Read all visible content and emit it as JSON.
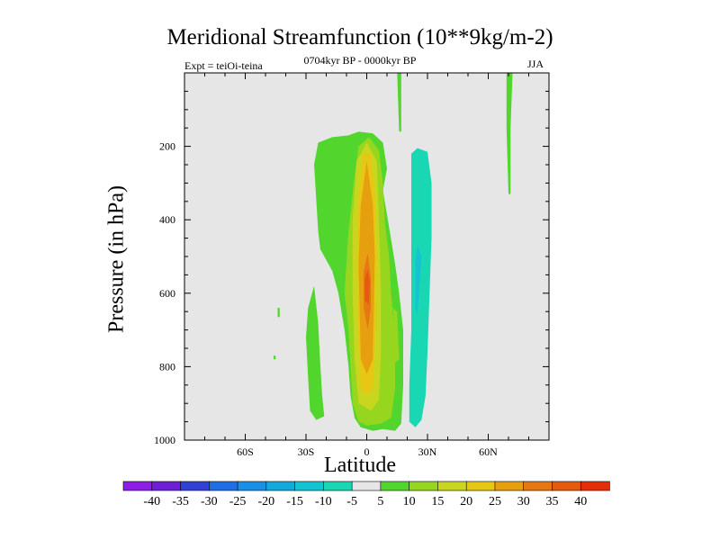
{
  "figure": {
    "title": "Meridional Streamfunction (10**9kg/m-2)",
    "left_label": "Expt = teiOi-teina",
    "center_label": "0704kyr BP - 0000kyr BP",
    "right_label": "JJA",
    "background_color": "#e6e6e6"
  },
  "chart_data": {
    "type": "heatmap",
    "title": "Meridional Streamfunction (10**9kg/m-2)",
    "xlabel": "Latitude",
    "ylabel": "Pressure (in hPa)",
    "xlim": [
      -90,
      90
    ],
    "ylim": [
      1000,
      0
    ],
    "x_ticks": [
      {
        "value": -60,
        "label": "60S"
      },
      {
        "value": -30,
        "label": "30S"
      },
      {
        "value": 0,
        "label": "0"
      },
      {
        "value": 30,
        "label": "30N"
      },
      {
        "value": 60,
        "label": "60N"
      }
    ],
    "y_ticks": [
      {
        "value": 200,
        "label": "200"
      },
      {
        "value": 400,
        "label": "400"
      },
      {
        "value": 600,
        "label": "600"
      },
      {
        "value": 800,
        "label": "800"
      },
      {
        "value": 1000,
        "label": "1000"
      }
    ],
    "colorbar": {
      "labels": [
        "-40",
        "-35",
        "-30",
        "-25",
        "-20",
        "-15",
        "-10",
        "-5",
        "5",
        "10",
        "15",
        "20",
        "25",
        "30",
        "35",
        "40"
      ],
      "colors": [
        "#8c1ee6",
        "#6e1fd6",
        "#3340d6",
        "#1f6ee6",
        "#1a8fe6",
        "#12aadd",
        "#14c3d2",
        "#19d7b3",
        "#e6e6e6",
        "#52d62e",
        "#96d61f",
        "#c8d61f",
        "#e6c814",
        "#e6a00f",
        "#e67814",
        "#e65a0f",
        "#e62d0a"
      ]
    },
    "fields": [
      {
        "name": "southern subtropical cell positive",
        "level": 5,
        "color": "#52d62e",
        "points": [
          [
            -24,
            430
          ],
          [
            -26,
            250
          ],
          [
            -24,
            190
          ],
          [
            -17,
            175
          ],
          [
            -9,
            170
          ],
          [
            -4,
            160
          ],
          [
            3,
            165
          ],
          [
            8,
            190
          ],
          [
            10,
            260
          ],
          [
            8,
            320
          ],
          [
            11,
            420
          ],
          [
            14,
            520
          ],
          [
            16,
            600
          ],
          [
            18,
            700
          ],
          [
            18,
            850
          ],
          [
            17,
            955
          ],
          [
            14,
            975
          ],
          [
            8,
            970
          ],
          [
            3,
            975
          ],
          [
            -3,
            965
          ],
          [
            -6,
            940
          ],
          [
            -8,
            880
          ],
          [
            -9,
            800
          ],
          [
            -11,
            700
          ],
          [
            -14,
            600
          ],
          [
            -17,
            540
          ],
          [
            -23,
            480
          ]
        ]
      },
      {
        "name": "southern lobe",
        "level": 5,
        "color": "#52d62e",
        "points": [
          [
            -26,
            580
          ],
          [
            -24,
            680
          ],
          [
            -23,
            790
          ],
          [
            -22,
            880
          ],
          [
            -21,
            935
          ],
          [
            -25,
            945
          ],
          [
            -28,
            920
          ],
          [
            -29,
            830
          ],
          [
            -30,
            720
          ],
          [
            -29,
            640
          ]
        ]
      },
      {
        "name": "upper extension near equator",
        "level": 5,
        "color": "#52d62e",
        "points": [
          [
            15,
            0
          ],
          [
            17,
            0
          ],
          [
            17,
            160
          ],
          [
            16,
            160
          ]
        ]
      },
      {
        "name": "high latitude filament",
        "level": 5,
        "color": "#52d62e",
        "points": [
          [
            69,
            0
          ],
          [
            72,
            0
          ],
          [
            71,
            150
          ],
          [
            71,
            330
          ],
          [
            70,
            330
          ],
          [
            69,
            150
          ]
        ]
      },
      {
        "name": "small blip 1",
        "level": 5,
        "color": "#52d62e",
        "points": [
          [
            -44,
            640
          ],
          [
            -43,
            640
          ],
          [
            -43,
            665
          ],
          [
            -44,
            665
          ]
        ]
      },
      {
        "name": "small blip 2",
        "level": 5,
        "color": "#52d62e",
        "points": [
          [
            -46,
            770
          ],
          [
            -45,
            770
          ],
          [
            -45,
            780
          ],
          [
            -46,
            780
          ]
        ]
      },
      {
        "name": "cross-equatorial core 10",
        "level": 10,
        "color": "#96d61f",
        "points": [
          [
            -11,
            600
          ],
          [
            -9,
            430
          ],
          [
            -6,
            280
          ],
          [
            -4,
            200
          ],
          [
            1,
            175
          ],
          [
            6,
            210
          ],
          [
            8,
            300
          ],
          [
            9,
            410
          ],
          [
            11,
            500
          ],
          [
            12,
            600
          ],
          [
            14,
            720
          ],
          [
            14,
            860
          ],
          [
            12,
            940
          ],
          [
            7,
            955
          ],
          [
            0,
            960
          ],
          [
            -4,
            950
          ],
          [
            -7,
            900
          ],
          [
            -8,
            800
          ],
          [
            -9,
            700
          ]
        ]
      },
      {
        "name": "upper right band 10",
        "level": 10,
        "color": "#96d61f",
        "points": [
          [
            13,
            640
          ],
          [
            15,
            650
          ],
          [
            16,
            780
          ],
          [
            14,
            790
          ]
        ]
      },
      {
        "name": "core 15",
        "level": 15,
        "color": "#c8d61f",
        "points": [
          [
            -7,
            400
          ],
          [
            -5,
            240
          ],
          [
            0,
            190
          ],
          [
            5,
            240
          ],
          [
            6,
            400
          ],
          [
            7,
            600
          ],
          [
            7,
            760
          ],
          [
            6,
            890
          ],
          [
            2,
            920
          ],
          [
            -4,
            900
          ],
          [
            -6,
            780
          ],
          [
            -7,
            600
          ]
        ]
      },
      {
        "name": "core 20",
        "level": 20,
        "color": "#e6c814",
        "points": [
          [
            -4,
            330
          ],
          [
            -2,
            220
          ],
          [
            2,
            220
          ],
          [
            4,
            330
          ],
          [
            5,
            500
          ],
          [
            4,
            760
          ],
          [
            3,
            860
          ],
          [
            0,
            880
          ],
          [
            -3,
            860
          ],
          [
            -4,
            760
          ],
          [
            -5,
            520
          ]
        ]
      },
      {
        "name": "core 25",
        "level": 25,
        "color": "#e6a00f",
        "points": [
          [
            -3,
            360
          ],
          [
            0,
            240
          ],
          [
            3,
            360
          ],
          [
            4,
            500
          ],
          [
            3,
            780
          ],
          [
            0,
            820
          ],
          [
            -3,
            780
          ],
          [
            -4,
            520
          ]
        ]
      },
      {
        "name": "core 30",
        "level": 30,
        "color": "#e67814",
        "points": [
          [
            -1.5,
            540
          ],
          [
            0.5,
            490
          ],
          [
            2,
            560
          ],
          [
            2,
            640
          ],
          [
            0.5,
            700
          ],
          [
            -1.5,
            640
          ]
        ]
      },
      {
        "name": "core 35",
        "level": 35,
        "color": "#e65a0f",
        "points": [
          [
            -1,
            560
          ],
          [
            0.5,
            535
          ],
          [
            1.5,
            570
          ],
          [
            1,
            630
          ],
          [
            -1,
            620
          ]
        ]
      },
      {
        "name": "northern negative cell",
        "level": -5,
        "color": "#19d7b3",
        "points": [
          [
            22,
            430
          ],
          [
            22,
            220
          ],
          [
            25,
            205
          ],
          [
            30,
            215
          ],
          [
            32,
            300
          ],
          [
            32,
            450
          ],
          [
            31,
            600
          ],
          [
            30,
            760
          ],
          [
            29,
            880
          ],
          [
            27,
            945
          ],
          [
            24,
            965
          ],
          [
            21,
            950
          ],
          [
            21,
            850
          ],
          [
            22,
            700
          ]
        ]
      },
      {
        "name": "northern negative core",
        "level": -10,
        "color": "#14c3d2",
        "points": [
          [
            24,
            520
          ],
          [
            25,
            470
          ],
          [
            27,
            500
          ],
          [
            26,
            580
          ],
          [
            25,
            660
          ],
          [
            24,
            640
          ]
        ]
      }
    ]
  }
}
